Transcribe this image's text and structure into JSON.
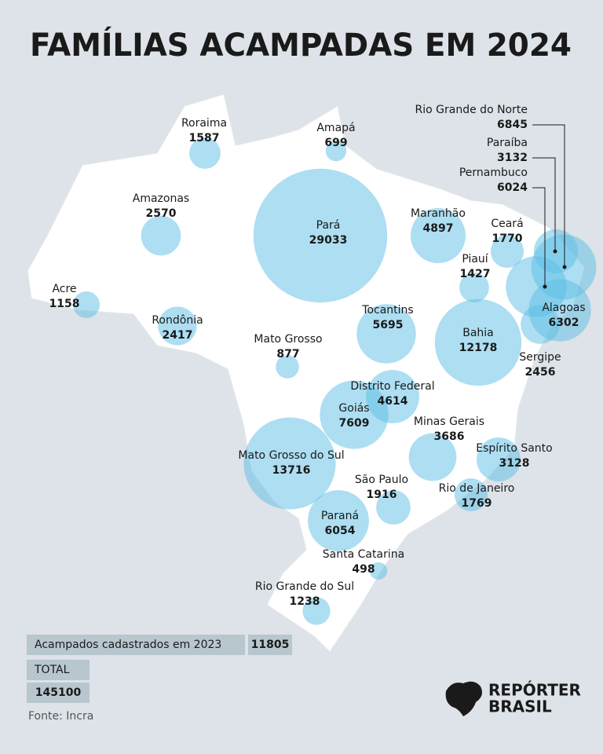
{
  "title": "FAMÍLIAS ACAMPADAS EM 2024",
  "states": [
    {
      "name": "Roraima",
      "value": 1587
    },
    {
      "name": "Amapá",
      "value": 699
    },
    {
      "name": "Amazonas",
      "value": 2570
    },
    {
      "name": "Pará",
      "value": 29033
    },
    {
      "name": "Maranhão",
      "value": 4897
    },
    {
      "name": "Ceará",
      "value": 1770
    },
    {
      "name": "Piauí",
      "value": 1427
    },
    {
      "name": "Acre",
      "value": 1158
    },
    {
      "name": "Rondônia",
      "value": 2417
    },
    {
      "name": "Tocantins",
      "value": 5695
    },
    {
      "name": "Bahia",
      "value": 12178
    },
    {
      "name": "Mato Grosso",
      "value": 877
    },
    {
      "name": "Rio Grande do Norte",
      "value": 6845
    },
    {
      "name": "Paraíba",
      "value": 3132
    },
    {
      "name": "Pernambuco",
      "value": 6024
    },
    {
      "name": "Alagoas",
      "value": 6302
    },
    {
      "name": "Sergipe",
      "value": 2456
    },
    {
      "name": "Distrito Federal",
      "value": 4614
    },
    {
      "name": "Goiás",
      "value": 7609
    },
    {
      "name": "Minas Gerais",
      "value": 3686
    },
    {
      "name": "Espírito Santo",
      "value": 3128
    },
    {
      "name": "Mato Grosso do Sul",
      "value": 13716
    },
    {
      "name": "São Paulo",
      "value": 1916
    },
    {
      "name": "Rio de Janeiro",
      "value": 1769
    },
    {
      "name": "Paraná",
      "value": 6054
    },
    {
      "name": "Santa Catarina",
      "value": 498
    },
    {
      "name": "Rio Grande do Sul",
      "value": 1238
    }
  ],
  "summary": {
    "label_2023": "Acampados cadastrados em 2023",
    "value_2023": 11805,
    "total_label": "TOTAL",
    "total": 145100
  },
  "source": "Fonte: Incra",
  "logo": [
    "REPÓRTER",
    "BRASIL"
  ]
}
